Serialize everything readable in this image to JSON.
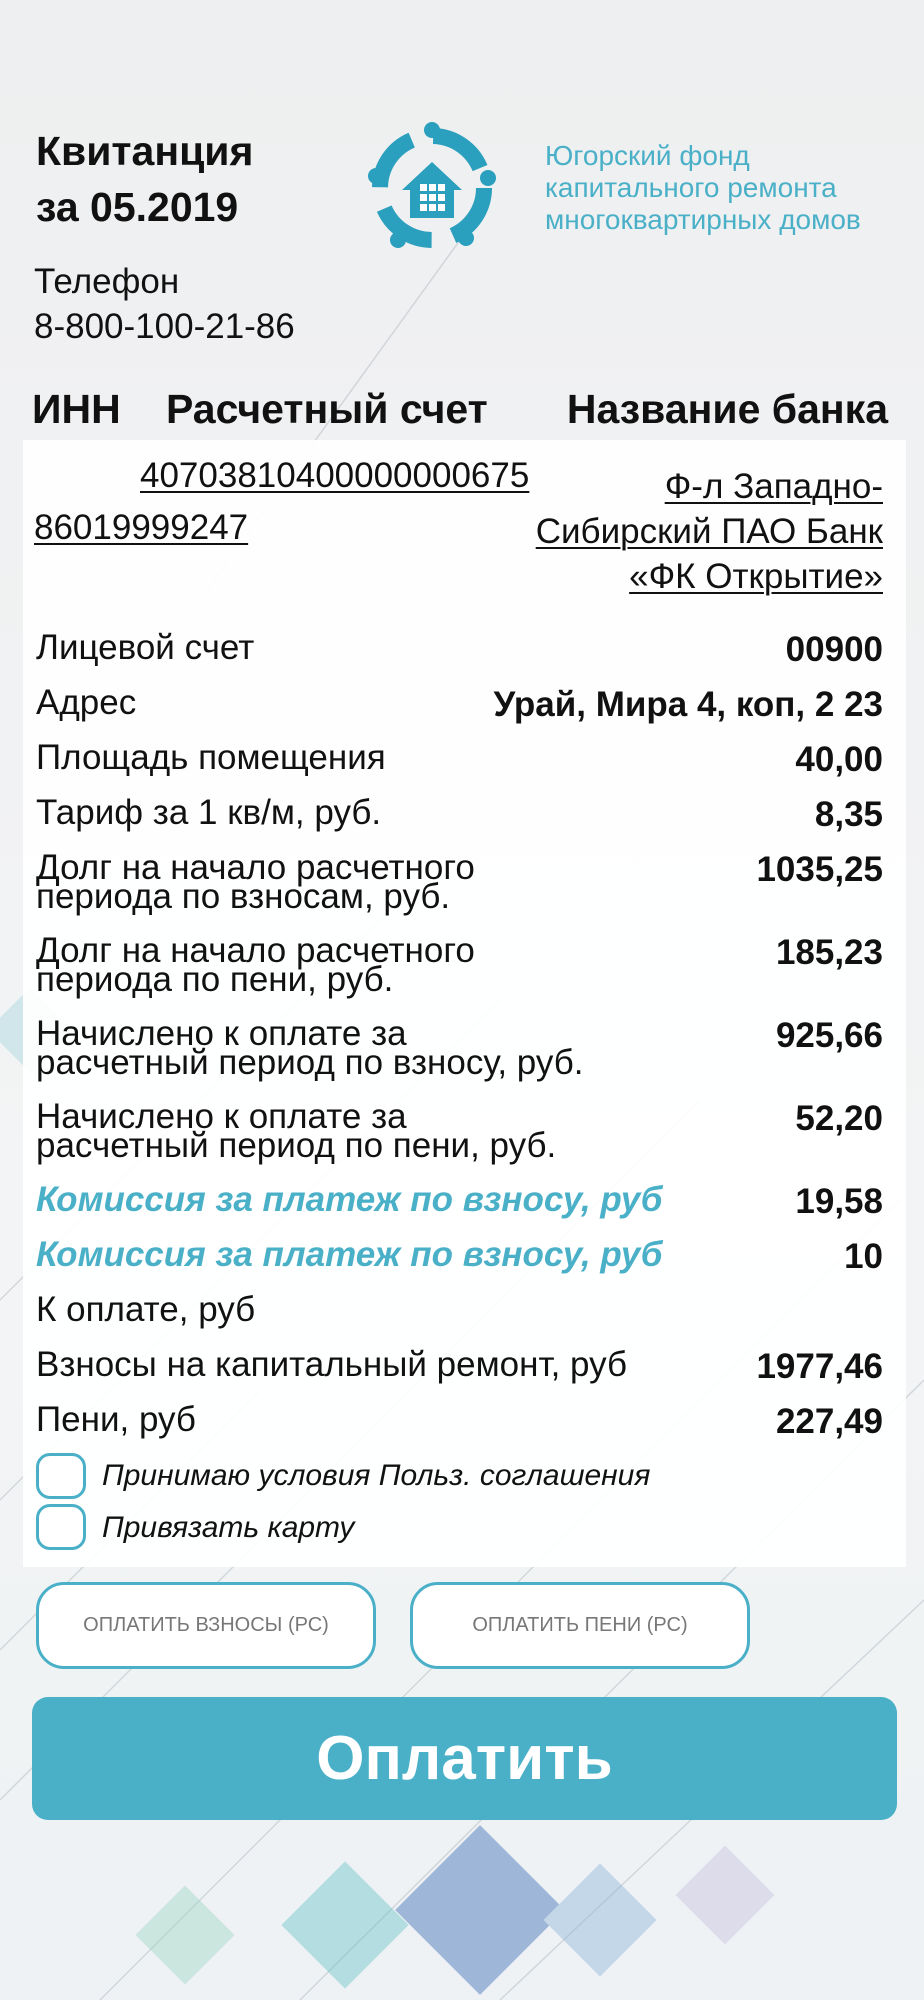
{
  "header": {
    "title_lines": [
      "Квитанция",
      "за 05.2019"
    ],
    "phone_label": "Телефон",
    "phone": "8-800-100-21-86",
    "org_lines": [
      "Югорский фонд",
      "капитального ремонта",
      "многоквартирных домов"
    ]
  },
  "bank_details": {
    "columns": [
      "ИНН",
      "Расчетный счет",
      "Название банка"
    ],
    "account": "40703810400000000675",
    "inn": "86019999247",
    "bank_lines": [
      "Ф-л Западно-",
      "Сибирский ПАО Банк",
      "«ФК Открытие»"
    ]
  },
  "rows": [
    {
      "label_lines": [
        "Лицевой счет"
      ],
      "value": "00900"
    },
    {
      "label_lines": [
        "Адрес"
      ],
      "value": "Урай, Мира 4, коп, 2 23"
    },
    {
      "label_lines": [
        "Площадь помещения"
      ],
      "value": "40,00"
    },
    {
      "label_lines": [
        "Тариф за 1 кв/м, руб."
      ],
      "value": "8,35"
    },
    {
      "label_lines": [
        "Долг на начало расчетного",
        "периода по взносам, руб."
      ],
      "value": "1035,25"
    },
    {
      "label_lines": [
        "Долг на начало расчетного",
        "периода по пени, руб."
      ],
      "value": "185,23"
    },
    {
      "label_lines": [
        "Начислено к оплате за",
        "расчетный период по взносу, руб."
      ],
      "value": "925,66"
    },
    {
      "label_lines": [
        "Начислено к оплате за",
        "расчетный период по пени, руб."
      ],
      "value": "52,20"
    },
    {
      "label_lines": [
        "Комиссия за платеж по взносу, руб"
      ],
      "value": "19,58",
      "accent": true
    },
    {
      "label_lines": [
        "Комиссия за платеж по взносу, руб"
      ],
      "value": "10",
      "accent": true
    },
    {
      "label_lines": [
        "К оплате, руб"
      ]
    },
    {
      "label_lines": [
        "Взносы на капитальный ремонт, руб"
      ],
      "value": "1977,46"
    },
    {
      "label_lines": [
        "Пени, руб"
      ],
      "value": "227,49"
    }
  ],
  "checkboxes": [
    "Принимаю условия Польз. соглашения",
    "Привязать карту"
  ],
  "buttons": [
    "ОПЛАТИТЬ ВЗНОСЫ (РС)",
    "ОПЛАТИТЬ ПЕНИ (РС)"
  ],
  "pay_button": "Оплатить"
}
